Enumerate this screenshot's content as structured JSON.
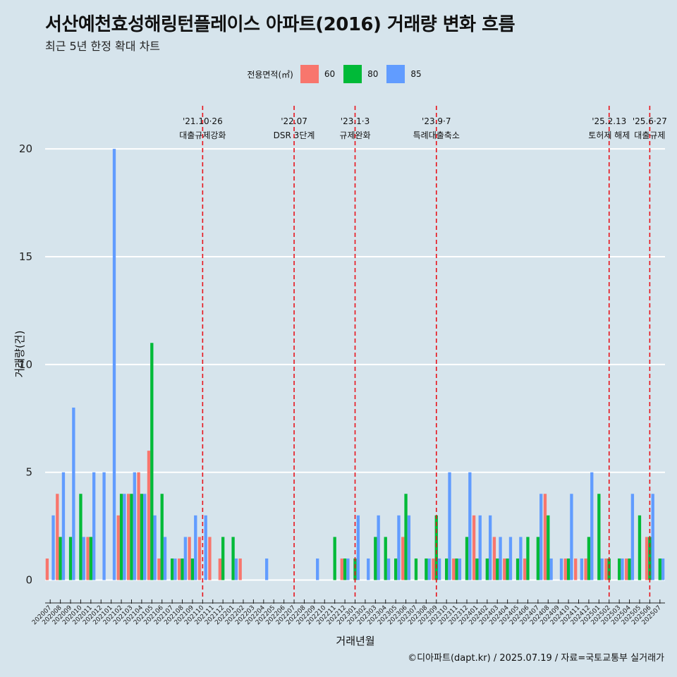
{
  "title": "서산예천효성해링턴플레이스 아파트(2016) 거래량 변화 흐름",
  "subtitle": "최근 5년 한정 확대 차트",
  "caption": "©디아파트(dapt.kr) / 2025.07.19 / 자료=국토교통부 실거래가",
  "legend": {
    "title": "전용면적(㎡)",
    "items": [
      {
        "label": "60",
        "color": "#f8766d"
      },
      {
        "label": "80",
        "color": "#00ba38"
      },
      {
        "label": "85",
        "color": "#619cff"
      }
    ]
  },
  "chart_data": {
    "type": "bar",
    "xlabel": "거래년월",
    "ylabel": "거래량(건)",
    "ylim": [
      -0.8,
      22
    ],
    "yticks": [
      0,
      5,
      10,
      15,
      20
    ],
    "grid": "horizontal",
    "categories": [
      "202007",
      "202008",
      "202009",
      "202010",
      "202011",
      "202012",
      "202101",
      "202102",
      "202103",
      "202104",
      "202105",
      "202106",
      "202107",
      "202108",
      "202109",
      "202110",
      "202111",
      "202112",
      "202201",
      "202202",
      "202203",
      "202204",
      "202205",
      "202206",
      "202207",
      "202208",
      "202209",
      "202210",
      "202211",
      "202212",
      "202301",
      "202302",
      "202303",
      "202304",
      "202305",
      "202306",
      "202307",
      "202308",
      "202309",
      "202310",
      "202311",
      "202312",
      "202401",
      "202402",
      "202403",
      "202404",
      "202405",
      "202406",
      "202407",
      "202408",
      "202409",
      "202410",
      "202411",
      "202412",
      "202501",
      "202502",
      "202503",
      "202504",
      "202505",
      "202506",
      "202507"
    ],
    "series": [
      {
        "name": "60",
        "color": "#f8766d",
        "values": [
          1,
          4,
          0,
          0,
          2,
          0,
          0,
          3,
          4,
          5,
          6,
          1,
          0,
          1,
          2,
          2,
          2,
          1,
          0,
          1,
          0,
          0,
          0,
          0,
          0,
          0,
          0,
          0,
          0,
          1,
          0,
          0,
          0,
          0,
          0,
          2,
          0,
          0,
          1,
          0,
          1,
          0,
          3,
          0,
          2,
          1,
          0,
          1,
          0,
          4,
          0,
          1,
          1,
          1,
          0,
          1,
          0,
          1,
          0,
          2,
          0
        ]
      },
      {
        "name": "80",
        "color": "#00ba38",
        "values": [
          0,
          2,
          2,
          4,
          2,
          0,
          0,
          4,
          4,
          4,
          11,
          4,
          1,
          1,
          1,
          0,
          0,
          2,
          2,
          0,
          0,
          0,
          0,
          0,
          0,
          0,
          0,
          0,
          2,
          1,
          1,
          0,
          2,
          2,
          1,
          4,
          1,
          1,
          3,
          1,
          1,
          2,
          1,
          1,
          1,
          1,
          1,
          2,
          2,
          3,
          0,
          1,
          0,
          2,
          4,
          1,
          1,
          1,
          3,
          2,
          1
        ]
      },
      {
        "name": "85",
        "color": "#619cff",
        "values": [
          3,
          5,
          8,
          2,
          5,
          5,
          20,
          4,
          5,
          4,
          3,
          2,
          1,
          2,
          3,
          3,
          0,
          0,
          1,
          0,
          0,
          1,
          0,
          0,
          0,
          0,
          1,
          0,
          0,
          1,
          3,
          1,
          3,
          1,
          3,
          3,
          0,
          1,
          1,
          5,
          1,
          5,
          3,
          3,
          2,
          2,
          2,
          0,
          4,
          1,
          1,
          4,
          1,
          5,
          1,
          0,
          1,
          4,
          0,
          4,
          1
        ]
      }
    ],
    "annotations": [
      {
        "x": "202110",
        "label1": "'21.10·26",
        "label2": "대출규제강화"
      },
      {
        "x": "202207",
        "label1": "'22.07",
        "label2": "DSR 3단계"
      },
      {
        "x": "202301",
        "label1": "'23.1·3",
        "label2": "규제완화"
      },
      {
        "x": "202309",
        "label1": "'23.9·7",
        "label2": "특례대출축소"
      },
      {
        "x": "202502",
        "label1": "'25.2.13",
        "label2": "토허제 해제"
      },
      {
        "x": "202506",
        "label1": "'25.6·27",
        "label2": "대출규제"
      }
    ]
  }
}
